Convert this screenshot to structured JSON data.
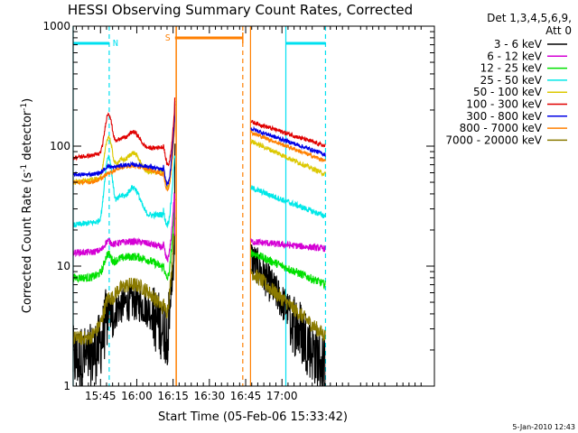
{
  "chart_data": {
    "type": "line",
    "title": "HESSI Observing Summary Count Rates, Corrected",
    "xlabel": "Start Time (05-Feb-06 15:33:42)",
    "ylabel_prefix": "Corrected Count Rate (s",
    "ylabel_sup1": "-1",
    "ylabel_mid": " detector",
    "ylabel_sup2": "-1",
    "ylabel_suffix": ")",
    "yscale": "log",
    "ylim": [
      1,
      1000
    ],
    "xlim_min": [
      933.7,
      1083
    ],
    "x_ticks": [
      {
        "t": 945,
        "label": "15:45"
      },
      {
        "t": 960,
        "label": "16:00"
      },
      {
        "t": 975,
        "label": "16:15"
      },
      {
        "t": 990,
        "label": "16:30"
      },
      {
        "t": 1005,
        "label": "16:45"
      },
      {
        "t": 1020,
        "label": "17:00"
      }
    ],
    "y_ticks": [
      {
        "v": 1,
        "label": "1"
      },
      {
        "v": 10,
        "label": "10"
      },
      {
        "v": 100,
        "label": "100"
      },
      {
        "v": 1000,
        "label": "1000"
      }
    ],
    "legend_header_1": "Det 1,3,4,5,6,9,",
    "legend_header_2": "Att 0",
    "legend_placement": "right",
    "series": [
      {
        "name": "3 - 6 keV",
        "color": "#000000",
        "key": "black"
      },
      {
        "name": "6 - 12 keV",
        "color": "#d400d4",
        "key": "magenta"
      },
      {
        "name": "12 - 25 keV",
        "color": "#00e000",
        "key": "green"
      },
      {
        "name": "25 - 50 keV",
        "color": "#00e8e8",
        "key": "cyan"
      },
      {
        "name": "50 - 100 keV",
        "color": "#dcc800",
        "key": "yellow"
      },
      {
        "name": "100 - 300 keV",
        "color": "#e00000",
        "key": "red"
      },
      {
        "name": "300 - 800 keV",
        "color": "#0000e6",
        "key": "blue"
      },
      {
        "name": "800 - 7000 keV",
        "color": "#ff8000",
        "key": "orange"
      },
      {
        "name": "7000 - 20000 keV",
        "color": "#8a7a00",
        "key": "olive"
      }
    ],
    "annotations": {
      "night_label": "N",
      "saa_label": "S",
      "night_bars": [
        [
          933.7,
          948.6
        ],
        [
          1021.6,
          1038.0
        ]
      ],
      "night_lines_dashed": [
        948.6,
        1038.0
      ],
      "night_lines_solid": [
        933.7,
        1021.6
      ],
      "saa_bar": [
        975.8,
        1003.8
      ],
      "saa_line_solid": 976.3,
      "saa_line_dashed": 1003.8,
      "saa_line_solid_2": 1007.0
    },
    "footer_date": "5-Jan-2010 12:43"
  }
}
